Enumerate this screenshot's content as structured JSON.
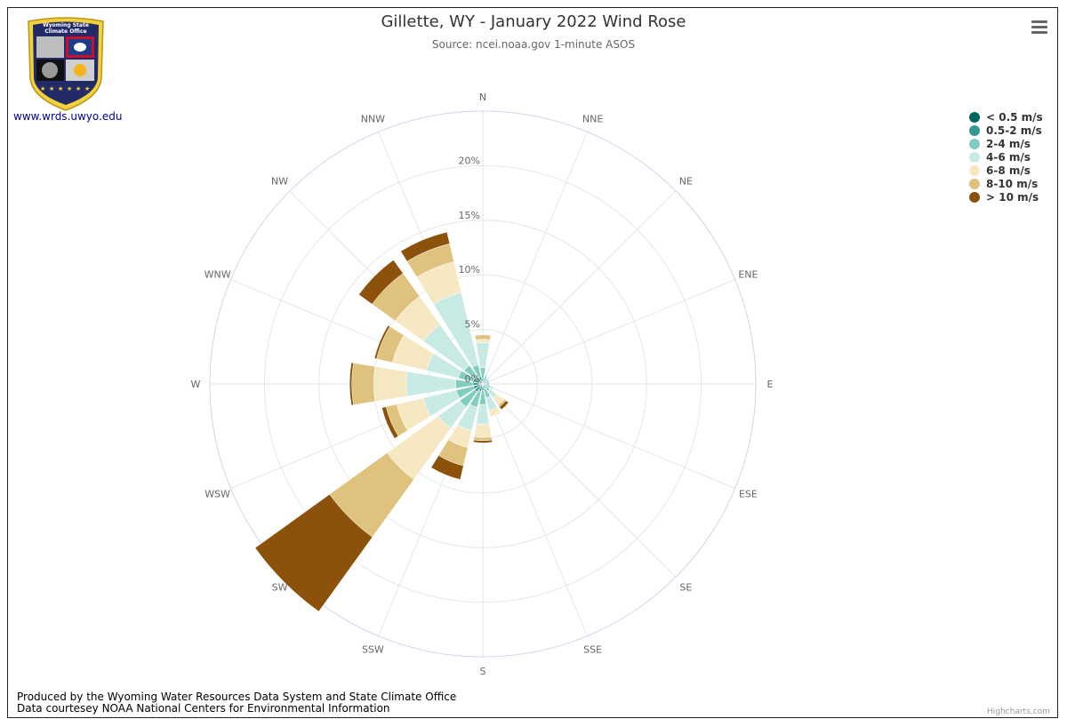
{
  "header": {
    "title": "Gillette, WY - January 2022 Wind Rose",
    "subtitle": "Source: ncei.noaa.gov 1-minute ASOS"
  },
  "logo": {
    "text_line1": "Wyoming State",
    "text_line2": "Climate Office"
  },
  "site_link": "www.wrds.uwyo.edu",
  "credits": {
    "line1": "Produced by the Wyoming Water Resources Data System and State Climate Office",
    "line2": "Data courtesey NOAA National Centers for Environmental Information"
  },
  "highcharts_credit": "Highcharts.com",
  "menu_icon": "hamburger-menu-icon",
  "chart_data": {
    "type": "bar",
    "polar": true,
    "stacked": true,
    "categories": [
      "N",
      "NNE",
      "NE",
      "ENE",
      "E",
      "ESE",
      "SE",
      "SSE",
      "S",
      "SSW",
      "SW",
      "WSW",
      "W",
      "WNW",
      "NW",
      "NNW"
    ],
    "yaxis": {
      "ticks": [
        "0%",
        "5%",
        "10%",
        "15%",
        "20%"
      ],
      "max": 25
    },
    "series": [
      {
        "name": "< 0.5 m/s",
        "color": "#01665e",
        "values": [
          0.2,
          0.1,
          0.1,
          0.1,
          0.1,
          0.1,
          0.1,
          0.1,
          0.2,
          0.2,
          0.3,
          0.3,
          0.3,
          0.3,
          0.3,
          0.3
        ]
      },
      {
        "name": "0.5-2 m/s",
        "color": "#35978f",
        "values": [
          0.3,
          0.2,
          0.2,
          0.2,
          0.2,
          0.2,
          0.2,
          0.3,
          0.4,
          0.5,
          0.6,
          0.6,
          0.6,
          0.6,
          0.5,
          0.4
        ]
      },
      {
        "name": "2-4 m/s",
        "color": "#80cdc1",
        "values": [
          1.0,
          0.4,
          0.3,
          0.3,
          0.3,
          0.4,
          0.5,
          0.9,
          1.3,
          1.5,
          1.7,
          1.6,
          1.6,
          1.4,
          1.3,
          1.1
        ]
      },
      {
        "name": "4-6 m/s",
        "color": "#c7eae5",
        "values": [
          2.3,
          0.2,
          0.1,
          0.1,
          0.1,
          0.3,
          0.8,
          1.2,
          1.8,
          2.2,
          2.4,
          3.1,
          4.5,
          3.0,
          4.6,
          6.8
        ]
      },
      {
        "name": "6-8 m/s",
        "color": "#f6e8c3",
        "values": [
          0.3,
          0,
          0,
          0,
          0,
          0,
          0.8,
          0.6,
          1.2,
          1.6,
          5.8,
          2.5,
          3.0,
          3.2,
          3.2,
          2.9
        ]
      },
      {
        "name": "8-10 m/s",
        "color": "#dfc27d",
        "values": [
          0.4,
          0,
          0,
          0,
          0,
          0,
          0.2,
          0,
          0.3,
          1.7,
          6.5,
          1.0,
          2.0,
          1.5,
          2.6,
          1.7
        ]
      },
      {
        "name": "> 10 m/s",
        "color": "#8c510a",
        "values": [
          0,
          0,
          0,
          0,
          0,
          0,
          0.3,
          0,
          0.2,
          1.3,
          8.4,
          0.4,
          0.2,
          0.2,
          1.5,
          1.1
        ]
      }
    ]
  }
}
